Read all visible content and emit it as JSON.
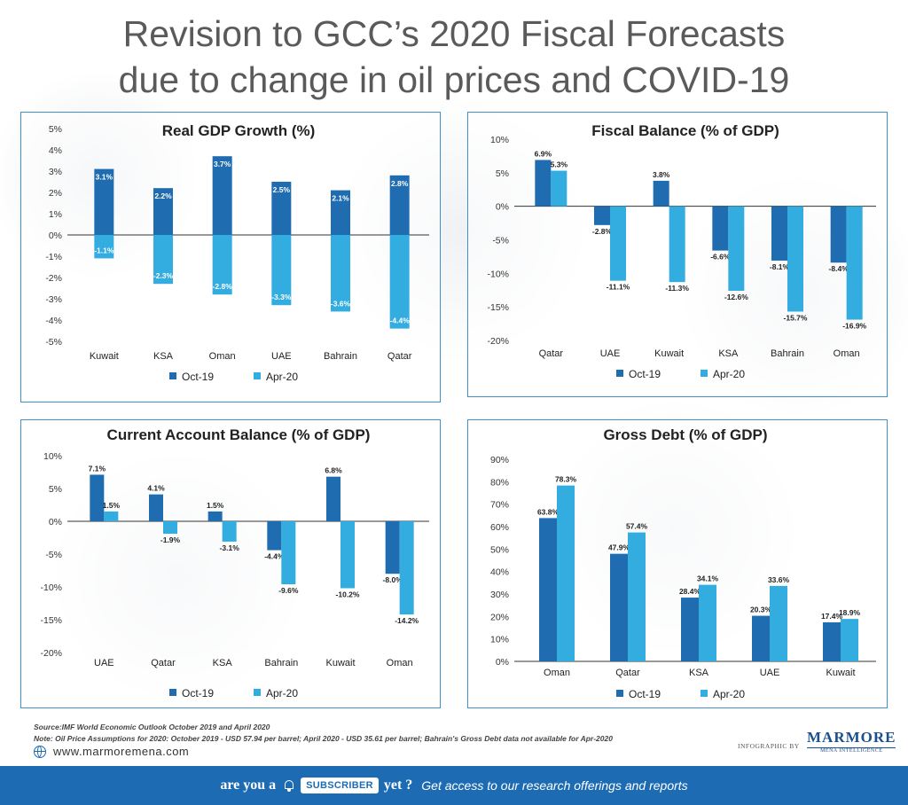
{
  "title_line1": "Revision to GCC’s 2020 Fiscal Forecasts",
  "title_line2": "due to change in oil prices and COVID-19",
  "colors": {
    "oct19": "#1f6cb0",
    "apr20": "#33ade0",
    "border": "#3d8fcd"
  },
  "chart_data": [
    {
      "type": "bar",
      "title": "Real GDP Growth (%)",
      "categories": [
        "Kuwait",
        "KSA",
        "Oman",
        "UAE",
        "Bahrain",
        "Qatar"
      ],
      "series": [
        {
          "name": "Oct-19",
          "values": [
            3.1,
            2.2,
            3.7,
            2.5,
            2.1,
            2.8
          ]
        },
        {
          "name": "Apr-20",
          "values": [
            -1.1,
            -2.3,
            -2.8,
            -3.3,
            -3.6,
            -4.4
          ]
        }
      ],
      "ylim": [
        -5,
        5
      ],
      "yticks": [
        -5,
        -4,
        -3,
        -2,
        -1,
        0,
        1,
        2,
        3,
        4,
        5
      ],
      "tick_suffix": "%",
      "legend": "bottom"
    },
    {
      "type": "bar",
      "title": "Fiscal Balance (% of GDP)",
      "categories": [
        "Qatar",
        "UAE",
        "Kuwait",
        "KSA",
        "Bahrain",
        "Oman"
      ],
      "series": [
        {
          "name": "Oct-19",
          "values": [
            6.9,
            -2.8,
            3.8,
            -6.6,
            -8.1,
            -8.4
          ]
        },
        {
          "name": "Apr-20",
          "values": [
            5.3,
            -11.1,
            -11.3,
            -12.6,
            -15.7,
            -16.9
          ]
        }
      ],
      "ylim": [
        -20,
        10
      ],
      "yticks": [
        -20,
        -15,
        -10,
        -5,
        0,
        5,
        10
      ],
      "tick_suffix": "%",
      "legend": "bottom"
    },
    {
      "type": "bar",
      "title": "Current Account Balance (% of GDP)",
      "categories": [
        "UAE",
        "Qatar",
        "KSA",
        "Bahrain",
        "Kuwait",
        "Oman"
      ],
      "series": [
        {
          "name": "Oct-19",
          "values": [
            7.1,
            4.1,
            1.5,
            -4.4,
            6.8,
            -8.0
          ]
        },
        {
          "name": "Apr-20",
          "values": [
            1.5,
            -1.9,
            -3.1,
            -9.6,
            -10.2,
            -14.2
          ]
        }
      ],
      "ylim": [
        -20,
        10
      ],
      "yticks": [
        -20,
        -15,
        -10,
        -5,
        0,
        5,
        10
      ],
      "tick_suffix": "%",
      "legend": "bottom"
    },
    {
      "type": "bar",
      "title": "Gross Debt (% of GDP)",
      "categories": [
        "Oman",
        "Qatar",
        "KSA",
        "UAE",
        "Kuwait"
      ],
      "series": [
        {
          "name": "Oct-19",
          "values": [
            63.8,
            47.9,
            28.4,
            20.3,
            17.4
          ]
        },
        {
          "name": "Apr-20",
          "values": [
            78.3,
            57.4,
            34.1,
            33.6,
            18.9
          ]
        }
      ],
      "ylim": [
        0,
        90
      ],
      "yticks": [
        0,
        10,
        20,
        30,
        40,
        50,
        60,
        70,
        80,
        90
      ],
      "tick_suffix": "%",
      "legend": "bottom"
    }
  ],
  "footer": {
    "source": "Source:IMF World Economic Outlook October 2019 and April 2020",
    "note": "Note: Oil Price Assumptions for 2020: October 2019 - USD 57.94 per barrel; April 2020 - USD 35.61 per barrel; Bahrain's Gross Debt data not available for Apr-2020",
    "website": "www.marmoremena.com",
    "infographic_by": "INFOGRAPHIC BY",
    "logo_name": "MARMORE",
    "logo_sub": "MENA INTELLIGENCE"
  },
  "banner": {
    "prefix": "are you a",
    "badge": "SUBSCRIBER",
    "suffix": "yet ?",
    "tagline": "Get access to our research offerings and reports"
  }
}
